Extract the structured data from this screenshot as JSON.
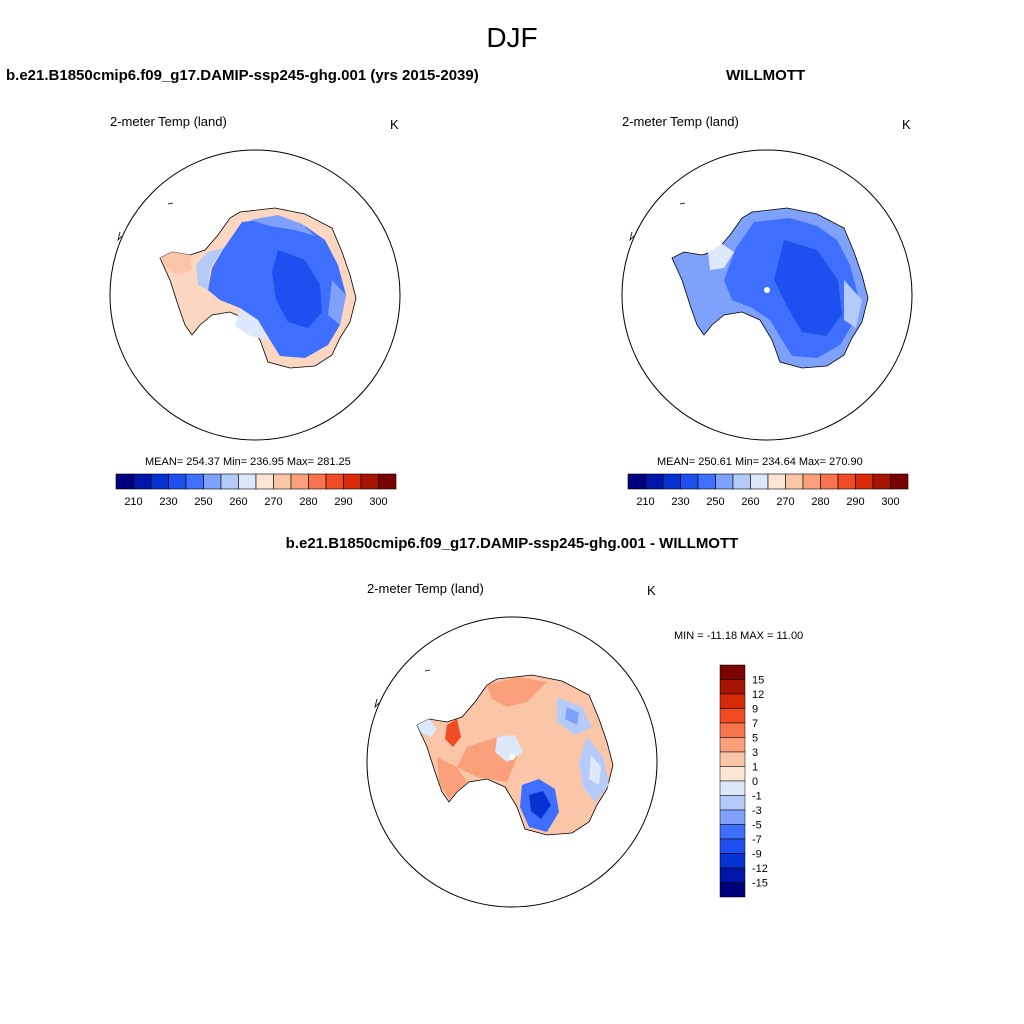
{
  "season": "DJF",
  "panels": {
    "model": {
      "title": "b.e21.B1850cmip6.f09_g17.DAMIP-ssp245-ghg.001 (yrs 2015-2039)",
      "variable": "2-meter Temp (land)",
      "units": "K",
      "stats": "MEAN= 254.37  Min= 236.95  Max= 281.25"
    },
    "obs": {
      "title": "WILLMOTT",
      "variable": "2-meter Temp (land)",
      "units": "K",
      "stats": "MEAN= 250.61  Min= 234.64  Max= 270.90"
    },
    "diff": {
      "title": "b.e21.B1850cmip6.f09_g17.DAMIP-ssp245-ghg.001 - WILLMOTT",
      "variable": "2-meter Temp (land)",
      "units": "K",
      "stats": "MIN = -11.18 MAX =  11.00"
    }
  },
  "colorbars": {
    "abs": {
      "colors": [
        "#00007f",
        "#0016a8",
        "#0532d0",
        "#1e4ff0",
        "#3f6fff",
        "#7ea1fb",
        "#b4cbfa",
        "#dde8fb",
        "#fde5d4",
        "#fbc6a8",
        "#f9a07a",
        "#f8744e",
        "#f04b23",
        "#d42a08",
        "#a81402",
        "#7a0200"
      ],
      "labels": [
        "210",
        "230",
        "250",
        "260",
        "270",
        "280",
        "290",
        "300"
      ]
    },
    "diff": {
      "colors": [
        "#7a0200",
        "#a81402",
        "#d42a08",
        "#f04b23",
        "#f8744e",
        "#f9a07a",
        "#fbc6a8",
        "#fde5d4",
        "#dde8fb",
        "#b4cbfa",
        "#7ea1fb",
        "#3f6fff",
        "#1e4ff0",
        "#0532d0",
        "#0016a8",
        "#00007f"
      ],
      "labels": [
        "15",
        "12",
        "9",
        "7",
        "5",
        "3",
        "1",
        "0",
        "-1",
        "-3",
        "-5",
        "-7",
        "-9",
        "-12",
        "-15"
      ]
    }
  }
}
